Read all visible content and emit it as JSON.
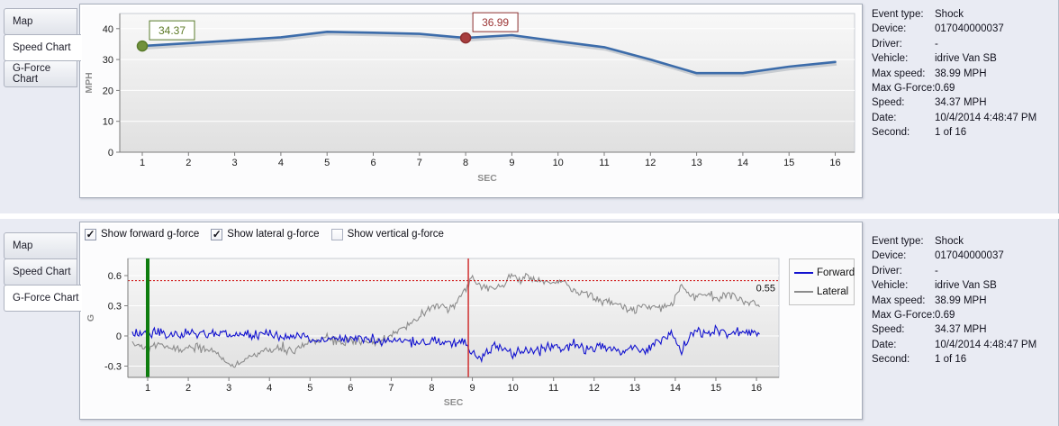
{
  "tabs": {
    "items": [
      "Map",
      "Speed Chart",
      "G-Force Chart"
    ],
    "top_active": "Speed Chart",
    "bottom_active": "G-Force Chart"
  },
  "checkboxes": [
    {
      "label": "Show forward g-force",
      "checked": true
    },
    {
      "label": "Show lateral g-force",
      "checked": true
    },
    {
      "label": "Show vertical g-force",
      "checked": false
    }
  ],
  "info_panel": {
    "rows": [
      {
        "label": "Event type:",
        "value": "Shock"
      },
      {
        "label": "Device:",
        "value": "017040000037"
      },
      {
        "label": "Driver:",
        "value": "-"
      },
      {
        "label": "Vehicle:",
        "value": "idrive Van SB"
      },
      {
        "label": "Max speed:",
        "value": "38.99 MPH"
      },
      {
        "label": "Max G-Force:",
        "value": "0.69"
      },
      {
        "label": "Speed:",
        "value": "34.37 MPH"
      },
      {
        "label": "Date:",
        "value": "10/4/2014 4:48:47 PM"
      },
      {
        "label": "Second:",
        "value": "1 of 16"
      }
    ]
  },
  "chart_data": [
    {
      "id": "speed-chart",
      "type": "line",
      "xlabel": "SEC",
      "ylabel": "MPH",
      "x": [
        1,
        2,
        3,
        4,
        5,
        6,
        7,
        8,
        9,
        10,
        11,
        12,
        13,
        14,
        15,
        16
      ],
      "speed_mph": [
        34.37,
        35.3,
        36.2,
        37.2,
        38.99,
        38.7,
        38.3,
        36.99,
        37.9,
        35.9,
        34.0,
        30.0,
        25.6,
        25.6,
        27.7,
        29.2
      ],
      "yticks": [
        0,
        10,
        20,
        30,
        40
      ],
      "ylim": [
        0,
        44.9
      ],
      "xlim": [
        0.51,
        16.43
      ],
      "grid": "horizontal",
      "line_color": "#3c6caa",
      "markers": [
        {
          "x": 1,
          "y": 34.37,
          "label": "34.37",
          "fill": "#71913c",
          "stroke": "#597b2b",
          "text_color": "#5d7a26"
        },
        {
          "x": 8,
          "y": 36.99,
          "label": "36.99",
          "fill": "#a83e3e",
          "stroke": "#8c2f2f",
          "text_color": "#9c3535"
        }
      ]
    },
    {
      "id": "gforce-chart",
      "type": "line",
      "xlabel": "SEC",
      "ylabel": "G",
      "xticks": [
        1,
        2,
        3,
        4,
        5,
        6,
        7,
        8,
        9,
        10,
        11,
        12,
        13,
        14,
        15,
        16
      ],
      "yticks": [
        -0.3,
        0,
        0.3,
        0.6
      ],
      "ylim": [
        -0.41,
        0.77
      ],
      "xlim": [
        0.55,
        16.55
      ],
      "grid": "horizontal",
      "legend_position": "right-outside",
      "threshold_line": {
        "y": 0.55,
        "label": "0.55",
        "color": "#cc0000",
        "style": "dotted"
      },
      "event_marker_lines": [
        {
          "x": 1.0,
          "color": "#0f7d0f",
          "width": 4
        },
        {
          "x": 8.9,
          "color": "#d03030",
          "width": 1.5
        }
      ],
      "noise_seed": 20141004,
      "series": [
        {
          "name": "Forward",
          "color": "#1212cf",
          "noise": 0.035,
          "anchors": [
            [
              0.62,
              0.03
            ],
            [
              1,
              0.01
            ],
            [
              1.3,
              0.05
            ],
            [
              1.6,
              0
            ],
            [
              2,
              0.03
            ],
            [
              2.4,
              0.04
            ],
            [
              2.8,
              0
            ],
            [
              3.2,
              0.03
            ],
            [
              3.6,
              0
            ],
            [
              4,
              0.02
            ],
            [
              4.4,
              -0.02
            ],
            [
              4.8,
              0.01
            ],
            [
              5.2,
              -0.04
            ],
            [
              5.6,
              -0.02
            ],
            [
              6,
              -0.05
            ],
            [
              6.4,
              -0.02
            ],
            [
              6.8,
              -0.06
            ],
            [
              7.2,
              -0.04
            ],
            [
              7.6,
              -0.06
            ],
            [
              8,
              -0.04
            ],
            [
              8.4,
              -0.06
            ],
            [
              8.75,
              -0.04
            ],
            [
              9,
              -0.17
            ],
            [
              9.15,
              -0.23
            ],
            [
              9.4,
              -0.14
            ],
            [
              9.6,
              -0.1
            ],
            [
              9.8,
              -0.14
            ],
            [
              10,
              -0.19
            ],
            [
              10.3,
              -0.12
            ],
            [
              10.6,
              -0.16
            ],
            [
              10.9,
              -0.09
            ],
            [
              11.2,
              -0.14
            ],
            [
              11.5,
              -0.08
            ],
            [
              11.8,
              -0.13
            ],
            [
              12.1,
              -0.09
            ],
            [
              12.4,
              -0.12
            ],
            [
              12.7,
              -0.15
            ],
            [
              13,
              -0.1
            ],
            [
              13.3,
              -0.14
            ],
            [
              13.6,
              -0.04
            ],
            [
              13.9,
              0.03
            ],
            [
              14.15,
              -0.16
            ],
            [
              14.4,
              0.05
            ],
            [
              14.7,
              0.02
            ],
            [
              15,
              0.06
            ],
            [
              15.3,
              0.01
            ],
            [
              15.6,
              0.06
            ],
            [
              15.9,
              0.03
            ],
            [
              16.1,
              0.05
            ]
          ]
        },
        {
          "name": "Lateral",
          "color": "#8c8c8c",
          "noise": 0.03,
          "anchors": [
            [
              0.62,
              -0.07
            ],
            [
              1,
              -0.12
            ],
            [
              1.4,
              -0.09
            ],
            [
              1.8,
              -0.14
            ],
            [
              2.2,
              -0.11
            ],
            [
              2.6,
              -0.16
            ],
            [
              3,
              -0.27
            ],
            [
              3.2,
              -0.29
            ],
            [
              3.5,
              -0.21
            ],
            [
              3.8,
              -0.15
            ],
            [
              4.2,
              -0.12
            ],
            [
              4.6,
              -0.14
            ],
            [
              5,
              -0.06
            ],
            [
              5.4,
              -0.03
            ],
            [
              5.8,
              -0.07
            ],
            [
              6.2,
              -0.04
            ],
            [
              6.6,
              -0.07
            ],
            [
              7,
              0.01
            ],
            [
              7.4,
              0.1
            ],
            [
              7.8,
              0.23
            ],
            [
              8,
              0.29
            ],
            [
              8.2,
              0.3
            ],
            [
              8.45,
              0.26
            ],
            [
              8.65,
              0.35
            ],
            [
              8.82,
              0.44
            ],
            [
              8.95,
              0.56
            ],
            [
              9.05,
              0.6
            ],
            [
              9.2,
              0.47
            ],
            [
              9.5,
              0.46
            ],
            [
              9.8,
              0.52
            ],
            [
              10,
              0.62
            ],
            [
              10.15,
              0.54
            ],
            [
              10.35,
              0.6
            ],
            [
              10.6,
              0.56
            ],
            [
              10.9,
              0.52
            ],
            [
              11.2,
              0.55
            ],
            [
              11.5,
              0.45
            ],
            [
              11.8,
              0.43
            ],
            [
              12.1,
              0.35
            ],
            [
              12.4,
              0.34
            ],
            [
              12.7,
              0.3
            ],
            [
              13,
              0.25
            ],
            [
              13.3,
              0.31
            ],
            [
              13.6,
              0.27
            ],
            [
              13.9,
              0.3
            ],
            [
              14.15,
              0.52
            ],
            [
              14.4,
              0.38
            ],
            [
              14.7,
              0.43
            ],
            [
              15,
              0.38
            ],
            [
              15.3,
              0.41
            ],
            [
              15.6,
              0.35
            ],
            [
              15.9,
              0.33
            ],
            [
              16.1,
              0.3
            ]
          ]
        }
      ]
    }
  ]
}
